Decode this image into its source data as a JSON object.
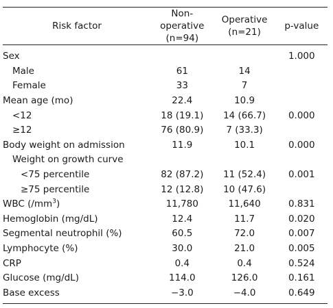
{
  "header": {
    "risk_factor": "Risk factor",
    "non_operative": "Non-operative",
    "non_operative_n": "(n=94)",
    "operative": "Operative",
    "operative_n": "(n=21)",
    "p_value": "p-value"
  },
  "rows": [
    {
      "label": "Sex",
      "indent": 0,
      "non_op": "",
      "op": "",
      "p": "1.000"
    },
    {
      "label": "Male",
      "indent": 1,
      "non_op": "61",
      "op": "14",
      "p": ""
    },
    {
      "label": "Female",
      "indent": 1,
      "non_op": "33",
      "op": "7",
      "p": ""
    },
    {
      "label": "Mean age (mo)",
      "indent": 0,
      "non_op": "22.4",
      "op": "10.9",
      "p": ""
    },
    {
      "label": "<12",
      "indent": 1,
      "non_op": "18 (19.1)",
      "op": "14 (66.7)",
      "p": "0.000"
    },
    {
      "label": "≥12",
      "indent": 1,
      "non_op": "76 (80.9)",
      "op": "7 (33.3)",
      "p": ""
    },
    {
      "label": "Body weight on admission",
      "indent": 0,
      "non_op": "11.9",
      "op": "10.1",
      "p": "0.000"
    },
    {
      "label": "Weight on growth curve",
      "indent": 1,
      "non_op": "",
      "op": "",
      "p": ""
    },
    {
      "label": "<75 percentile",
      "indent": 2,
      "non_op": "82 (87.2)",
      "op": "11 (52.4)",
      "p": "0.001"
    },
    {
      "label": "≥75 percentile",
      "indent": 2,
      "non_op": "12 (12.8)",
      "op": "10 (47.6)",
      "p": ""
    },
    {
      "label": "WBC (/mm",
      "label_sup": "3",
      "label_after": ")",
      "indent": 0,
      "non_op": "11,780",
      "op": "11,640",
      "p": "0.831"
    },
    {
      "label": "Hemoglobin (mg/dL)",
      "indent": 0,
      "non_op": "12.4",
      "op": "11.7",
      "p": "0.020"
    },
    {
      "label": "Segmental neutrophil (%)",
      "indent": 0,
      "non_op": "60.5",
      "op": "72.0",
      "p": "0.007"
    },
    {
      "label": "Lymphocyte (%)",
      "indent": 0,
      "non_op": "30.0",
      "op": "21.0",
      "p": "0.005"
    },
    {
      "label": "CRP",
      "indent": 0,
      "non_op": "0.4",
      "op": "0.4",
      "p": "0.524"
    },
    {
      "label": "Glucose (mg/dL)",
      "indent": 0,
      "non_op": "114.0",
      "op": "126.0",
      "p": "0.161"
    },
    {
      "label": "Base excess",
      "indent": 0,
      "non_op": "−3.0",
      "op": "−4.0",
      "p": "0.649"
    }
  ]
}
